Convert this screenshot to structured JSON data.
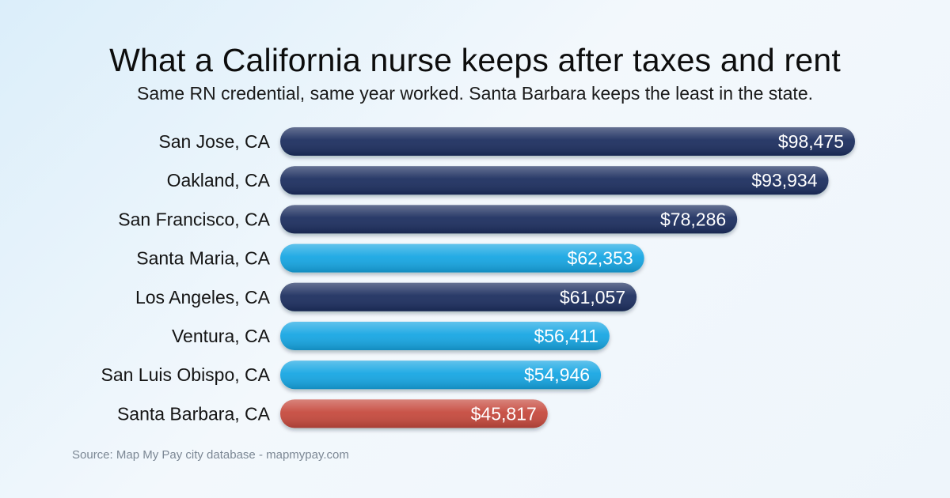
{
  "chart_data": {
    "type": "bar",
    "orientation": "horizontal",
    "title": "What a California nurse keeps after taxes and rent",
    "subtitle": "Same RN credential, same year worked. Santa Barbara keeps the least in the state.",
    "categories": [
      "San Jose, CA",
      "Oakland, CA",
      "San Francisco, CA",
      "Santa Maria, CA",
      "Los Angeles, CA",
      "Ventura, CA",
      "San Luis Obispo, CA",
      "Santa Barbara, CA"
    ],
    "values": [
      98475,
      93934,
      78286,
      62353,
      61057,
      56411,
      54946,
      45817
    ],
    "value_labels": [
      "$98,475",
      "$93,934",
      "$78,286",
      "$62,353",
      "$61,057",
      "$56,411",
      "$54,946",
      "$45,817"
    ],
    "bar_colors": [
      "#1c2f5e",
      "#1c2f5e",
      "#1c2f5e",
      "#18a6e3",
      "#1c2f5e",
      "#18a6e3",
      "#18a6e3",
      "#c64a3c"
    ],
    "xlim": [
      0,
      98475
    ],
    "grid": false,
    "legend": "none",
    "source": "Source: Map My Pay city database - mapmypay.com"
  }
}
